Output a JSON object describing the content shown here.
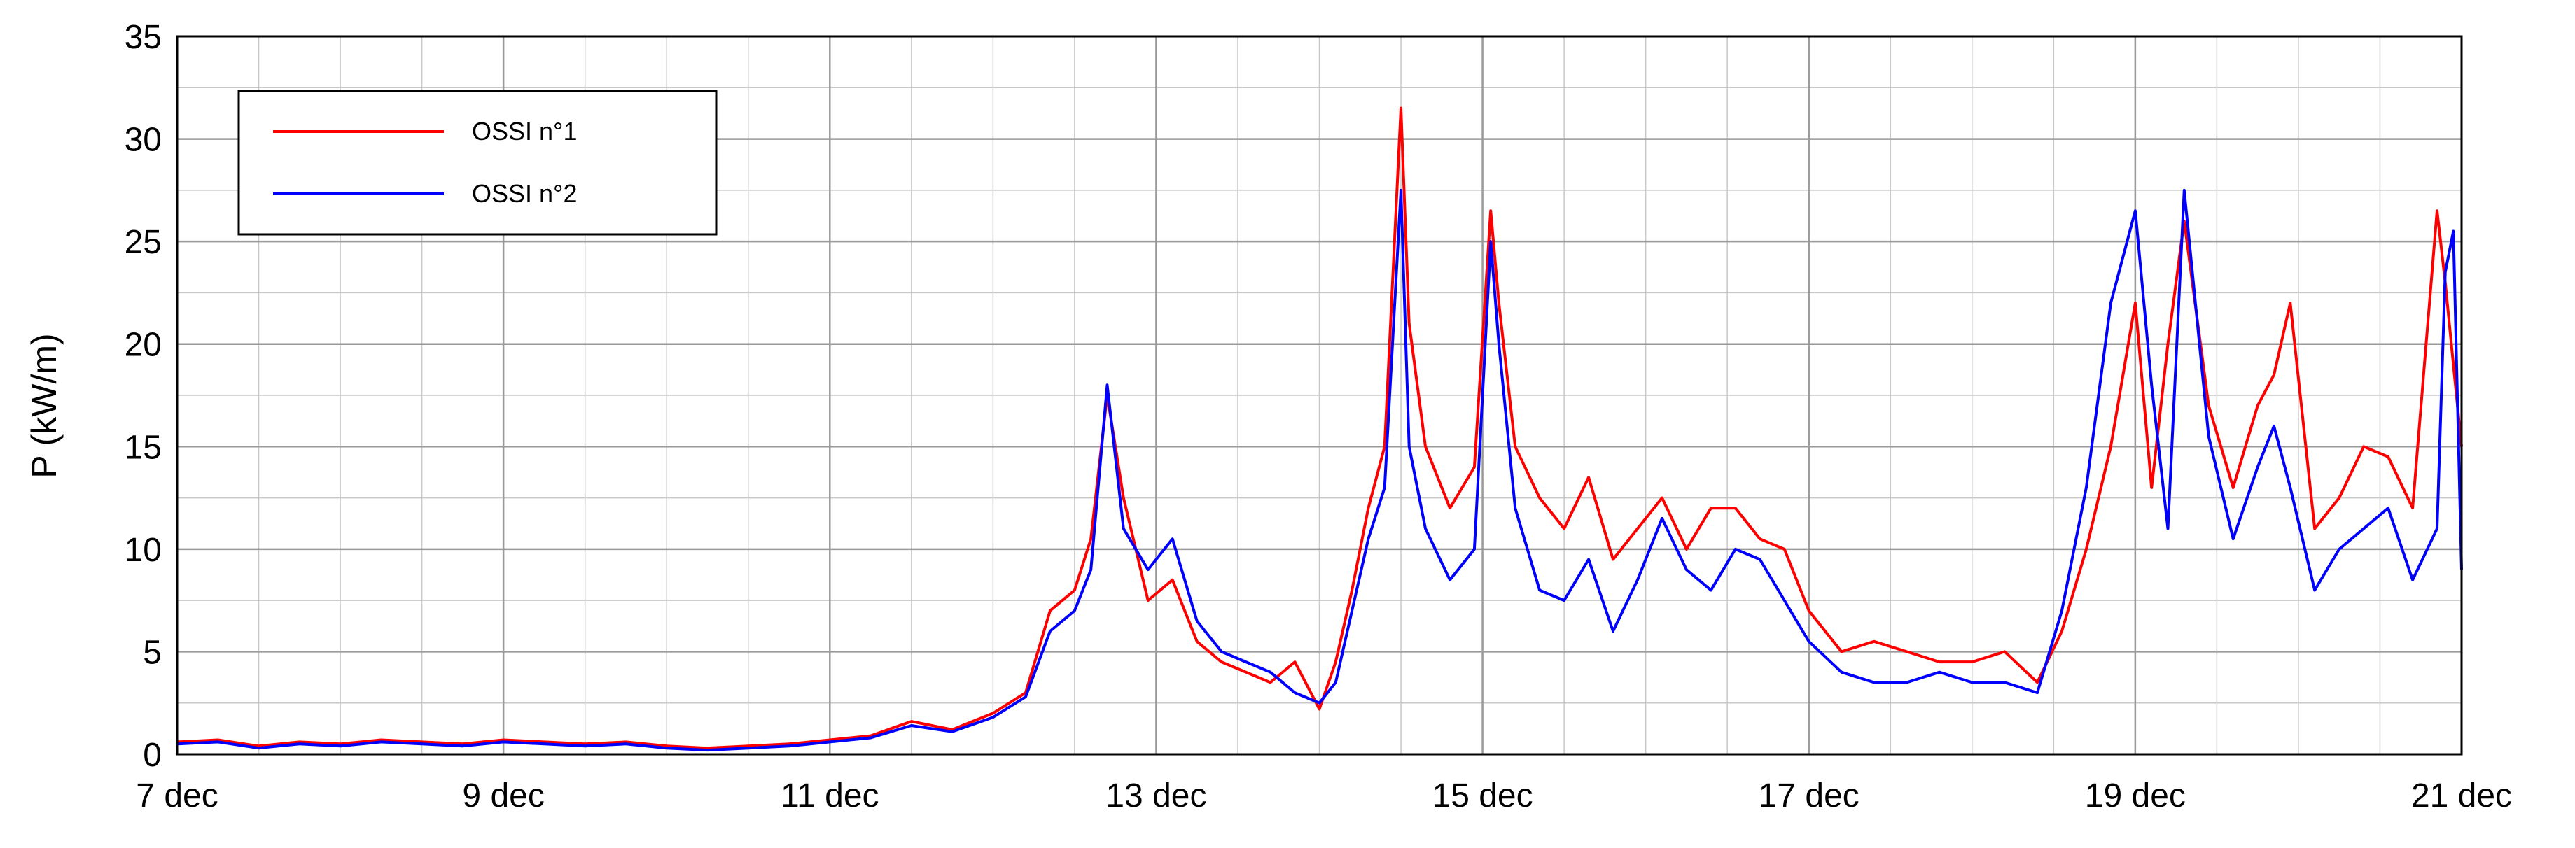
{
  "chart_data": {
    "type": "line",
    "title": "",
    "xlabel": "",
    "ylabel": "P (kW/m)",
    "xlim": [
      7,
      21
    ],
    "ylim": [
      0,
      35
    ],
    "x_ticks": [
      7,
      9,
      11,
      13,
      15,
      17,
      19,
      21
    ],
    "x_tick_labels": [
      "7 dec",
      "9 dec",
      "11 dec",
      "13 dec",
      "15 dec",
      "17 dec",
      "19 dec",
      "21 dec"
    ],
    "y_ticks": [
      0,
      5,
      10,
      15,
      20,
      25,
      30,
      35
    ],
    "y_tick_labels": [
      "0",
      "5",
      "10",
      "15",
      "20",
      "25",
      "30",
      "35"
    ],
    "grid": true,
    "legend_position": "top-left",
    "series": [
      {
        "name": "OSSI n°1",
        "color": "#ff0000",
        "x": [
          7.0,
          7.25,
          7.5,
          7.75,
          8.0,
          8.25,
          8.5,
          8.75,
          9.0,
          9.25,
          9.5,
          9.75,
          10.0,
          10.25,
          10.5,
          10.75,
          11.0,
          11.25,
          11.5,
          11.75,
          12.0,
          12.2,
          12.35,
          12.5,
          12.6,
          12.7,
          12.8,
          12.95,
          13.1,
          13.25,
          13.4,
          13.55,
          13.7,
          13.85,
          14.0,
          14.1,
          14.2,
          14.3,
          14.4,
          14.5,
          14.55,
          14.65,
          14.8,
          14.95,
          15.05,
          15.1,
          15.2,
          15.35,
          15.5,
          15.65,
          15.8,
          15.95,
          16.1,
          16.25,
          16.4,
          16.55,
          16.7,
          16.85,
          17.0,
          17.2,
          17.4,
          17.6,
          17.8,
          18.0,
          18.2,
          18.4,
          18.55,
          18.7,
          18.85,
          19.0,
          19.1,
          19.2,
          19.3,
          19.45,
          19.6,
          19.75,
          19.85,
          19.95,
          20.1,
          20.25,
          20.4,
          20.55,
          20.7,
          20.85,
          20.9,
          20.95,
          21.0
        ],
        "values": [
          0.6,
          0.7,
          0.4,
          0.6,
          0.5,
          0.7,
          0.6,
          0.5,
          0.7,
          0.6,
          0.5,
          0.6,
          0.4,
          0.3,
          0.4,
          0.5,
          0.7,
          0.9,
          1.6,
          1.2,
          2.0,
          3.0,
          7.0,
          8.0,
          10.5,
          17.5,
          12.5,
          7.5,
          8.5,
          5.5,
          4.5,
          4.0,
          3.5,
          4.5,
          2.2,
          4.5,
          8.0,
          12.0,
          15.0,
          31.5,
          21.0,
          15.0,
          12.0,
          14.0,
          26.5,
          22.0,
          15.0,
          12.5,
          11.0,
          13.5,
          9.5,
          11.0,
          12.5,
          10.0,
          12.0,
          12.0,
          10.5,
          10.0,
          7.0,
          5.0,
          5.5,
          5.0,
          4.5,
          4.5,
          5.0,
          3.5,
          6.0,
          10.0,
          15.0,
          22.0,
          13.0,
          20.0,
          26.0,
          17.0,
          13.0,
          17.0,
          18.5,
          22.0,
          11.0,
          12.5,
          15.0,
          14.5,
          12.0,
          26.5,
          23.0,
          19.0,
          15.0
        ]
      },
      {
        "name": "OSSI n°2",
        "color": "#0000ff",
        "x": [
          7.0,
          7.25,
          7.5,
          7.75,
          8.0,
          8.25,
          8.5,
          8.75,
          9.0,
          9.25,
          9.5,
          9.75,
          10.0,
          10.25,
          10.5,
          10.75,
          11.0,
          11.25,
          11.5,
          11.75,
          12.0,
          12.2,
          12.35,
          12.5,
          12.6,
          12.7,
          12.8,
          12.95,
          13.1,
          13.25,
          13.4,
          13.55,
          13.7,
          13.85,
          14.0,
          14.1,
          14.2,
          14.3,
          14.4,
          14.5,
          14.55,
          14.65,
          14.8,
          14.95,
          15.05,
          15.1,
          15.2,
          15.35,
          15.5,
          15.65,
          15.8,
          15.95,
          16.1,
          16.25,
          16.4,
          16.55,
          16.7,
          16.85,
          17.0,
          17.2,
          17.4,
          17.6,
          17.8,
          18.0,
          18.2,
          18.4,
          18.55,
          18.7,
          18.85,
          19.0,
          19.1,
          19.2,
          19.3,
          19.45,
          19.6,
          19.75,
          19.85,
          19.95,
          20.1,
          20.25,
          20.4,
          20.55,
          20.7,
          20.85,
          20.9,
          20.95,
          21.0
        ],
        "values": [
          0.5,
          0.6,
          0.3,
          0.5,
          0.4,
          0.6,
          0.5,
          0.4,
          0.6,
          0.5,
          0.4,
          0.5,
          0.3,
          0.2,
          0.3,
          0.4,
          0.6,
          0.8,
          1.4,
          1.1,
          1.8,
          2.8,
          6.0,
          7.0,
          9.0,
          18.0,
          11.0,
          9.0,
          10.5,
          6.5,
          5.0,
          4.5,
          4.0,
          3.0,
          2.5,
          3.5,
          7.0,
          10.5,
          13.0,
          27.5,
          15.0,
          11.0,
          8.5,
          10.0,
          25.0,
          20.0,
          12.0,
          8.0,
          7.5,
          9.5,
          6.0,
          8.5,
          11.5,
          9.0,
          8.0,
          10.0,
          9.5,
          7.5,
          5.5,
          4.0,
          3.5,
          3.5,
          4.0,
          3.5,
          3.5,
          3.0,
          7.0,
          13.0,
          22.0,
          26.5,
          18.0,
          11.0,
          27.5,
          15.5,
          10.5,
          14.0,
          16.0,
          13.0,
          8.0,
          10.0,
          11.0,
          12.0,
          8.5,
          11.0,
          23.5,
          25.5,
          9.0
        ]
      }
    ]
  }
}
